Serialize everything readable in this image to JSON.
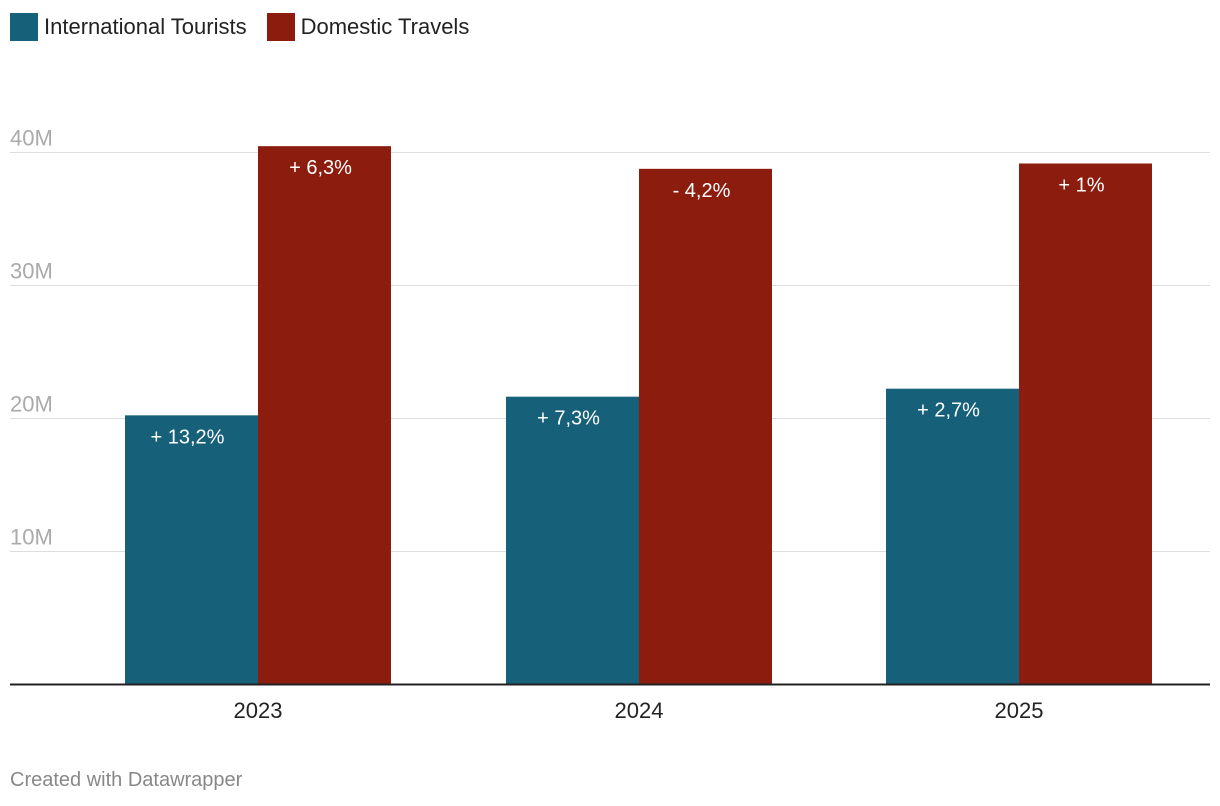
{
  "legend": {
    "items": [
      {
        "label": "International Tourists",
        "color": "#17607a"
      },
      {
        "label": "Domestic Travels",
        "color": "#8c1c0e"
      }
    ]
  },
  "chart_data": {
    "type": "bar",
    "categories": [
      "2023",
      "2024",
      "2025"
    ],
    "series": [
      {
        "name": "International Tourists",
        "values": [
          20.2,
          21.6,
          22.2
        ],
        "labels": [
          "+ 13,2%",
          "+ 7,3%",
          "+ 2,7%"
        ],
        "color": "#17607a"
      },
      {
        "name": "Domestic Travels",
        "values": [
          40.4,
          38.7,
          39.1
        ],
        "labels": [
          "+ 6,3%",
          "- 4,2%",
          "+ 1%"
        ],
        "color": "#8c1c0e"
      }
    ],
    "yticks": [
      {
        "value": 10,
        "label": "10M"
      },
      {
        "value": 20,
        "label": "20M"
      },
      {
        "value": 30,
        "label": "30M"
      },
      {
        "value": 40,
        "label": "40M"
      }
    ],
    "ylim": [
      0,
      40
    ],
    "grid": true,
    "legend_position": "top-left"
  },
  "footer": {
    "credit": "Created with Datawrapper"
  }
}
